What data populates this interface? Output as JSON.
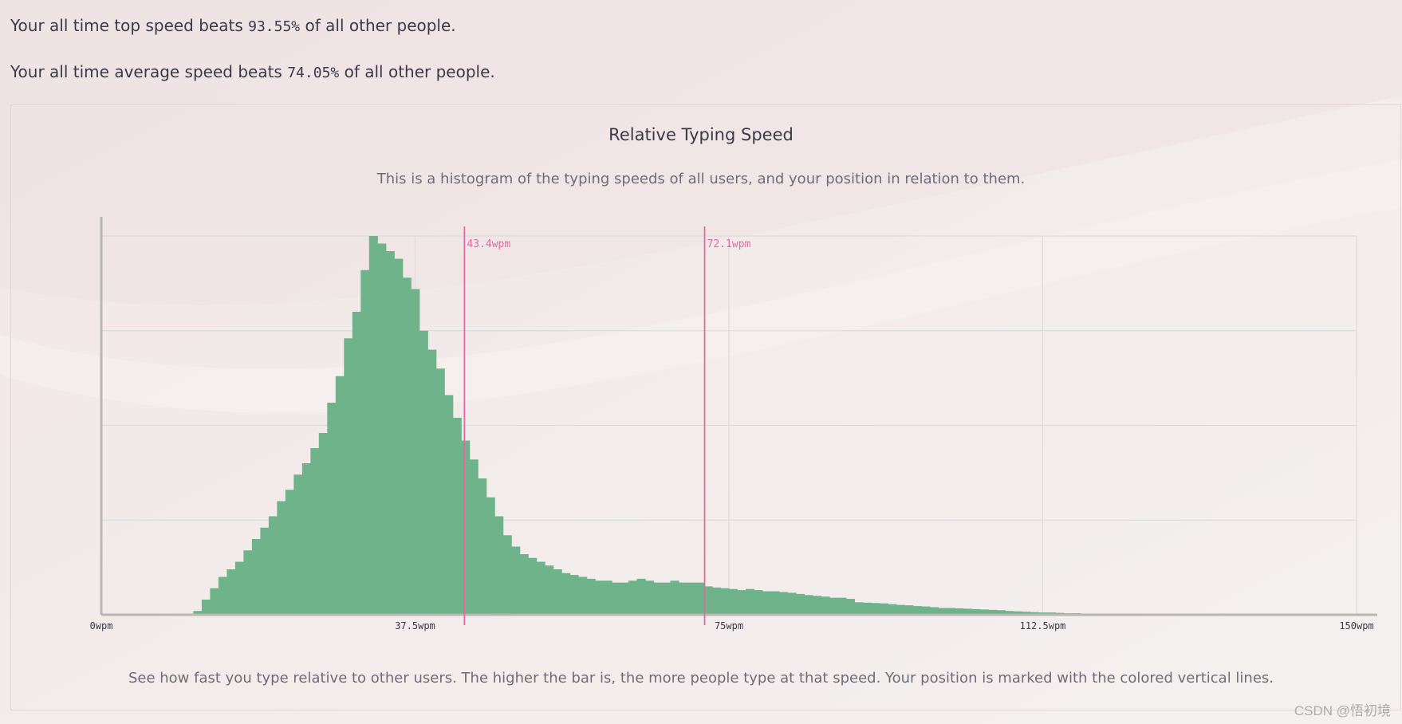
{
  "stats": {
    "top_prefix": "Your all time top speed beats ",
    "top_pct": "93.55%",
    "top_suffix": " of all other people.",
    "avg_prefix": "Your all time average speed beats ",
    "avg_pct": "74.05%",
    "avg_suffix": " of all other people."
  },
  "chart": {
    "title": "Relative Typing Speed",
    "subtitle": "This is a histogram of the typing speeds of all users, and your position in relation to them.",
    "caption": "See how fast you type relative to other users. The higher the bar is, the more people type at that speed. Your position is marked with the colored vertical lines."
  },
  "watermark": "CSDN @悟初境",
  "colors": {
    "bar": "#6fb38b",
    "marker": "#e06aa3",
    "grid": "#dcdcdc",
    "axis": "#b9b6b5",
    "tick_text": "#3b3947",
    "background": "#f3efee"
  },
  "chart_data": {
    "type": "bar",
    "title": "Relative Typing Speed",
    "subtitle": "This is a histogram of the typing speeds of all users, and your position in relation to them.",
    "xlabel": "",
    "ylabel": "",
    "xlim": [
      0,
      150
    ],
    "ylim": [
      0,
      100
    ],
    "x_ticks": [
      0,
      37.5,
      75,
      112.5,
      150
    ],
    "x_tick_labels": [
      "0wpm",
      "37.5wpm",
      "75wpm",
      "112.5wpm",
      "150wpm"
    ],
    "x_unit": "wpm",
    "bin_width": 1,
    "bin_start": 0,
    "grid": true,
    "values": [
      0,
      0,
      0,
      0,
      0,
      0,
      0,
      0,
      0,
      0,
      0,
      1,
      4,
      7,
      10,
      12,
      14,
      17,
      20,
      23,
      26,
      30,
      33,
      37,
      40,
      44,
      48,
      56,
      63,
      73,
      80,
      91,
      100,
      98,
      96,
      94,
      89,
      86,
      75,
      70,
      65,
      58,
      52,
      46,
      41,
      36,
      31,
      26,
      21,
      18,
      16,
      15,
      14,
      13,
      12,
      11,
      10.5,
      10,
      9.5,
      9,
      9,
      8.5,
      8.5,
      9,
      9.5,
      9,
      8.5,
      8.5,
      9,
      8.5,
      8.5,
      8.5,
      7.5,
      7.2,
      7,
      6.8,
      6.5,
      6.8,
      6.5,
      6.2,
      6.2,
      6,
      5.8,
      5.5,
      5.2,
      5,
      4.8,
      4.5,
      4.5,
      4.2,
      3.3,
      3.2,
      3.1,
      3,
      2.8,
      2.6,
      2.5,
      2.3,
      2.2,
      2,
      1.8,
      1.8,
      1.7,
      1.6,
      1.5,
      1.4,
      1.3,
      1.2,
      1,
      0.9,
      0.8,
      0.7,
      0.6,
      0.6,
      0.5,
      0.4,
      0.4,
      0.3,
      0.3,
      0.3,
      0.2,
      0.3,
      0.2,
      0.2,
      0.2,
      0.2,
      0.1,
      0.1,
      0.1,
      0.1,
      0,
      0,
      0,
      0,
      0,
      0,
      0,
      0,
      0,
      0,
      0,
      0,
      0,
      0,
      0,
      0,
      0,
      0
    ],
    "markers": [
      {
        "value": 43.4,
        "label": "43.4wpm"
      },
      {
        "value": 72.1,
        "label": "72.1wpm"
      }
    ]
  }
}
